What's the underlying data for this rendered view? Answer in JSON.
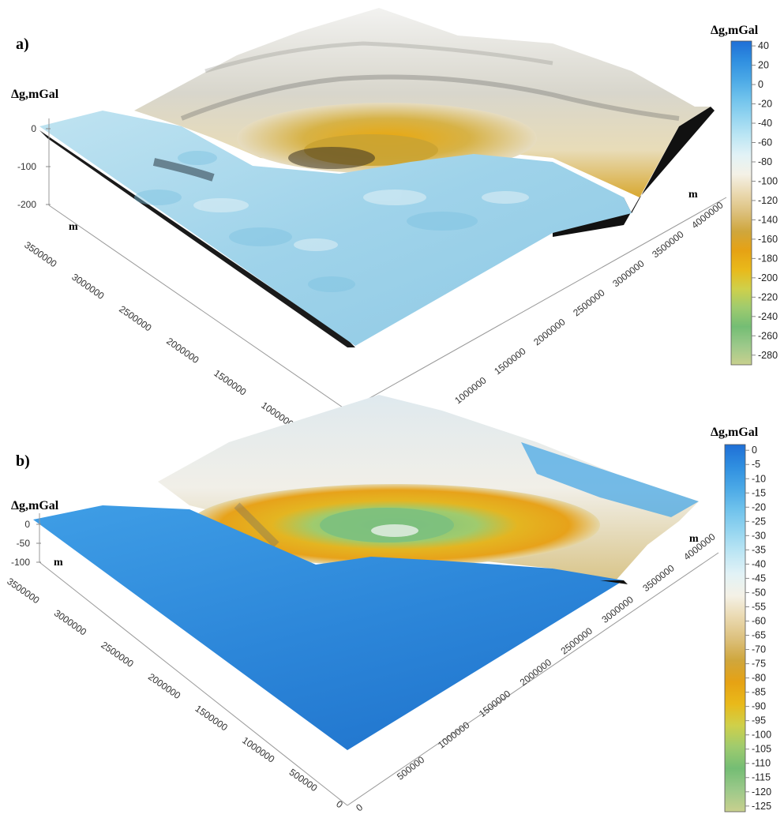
{
  "chart_data": [
    {
      "type": "surface3d",
      "panel": "a)",
      "zlabel": "Δg,mGal",
      "z_ticks": [
        "0",
        "-100",
        "-200"
      ],
      "x_axis_unit": "m",
      "x_ticks": [
        "1000000",
        "1500000",
        "2000000",
        "2500000",
        "3000000",
        "3500000"
      ],
      "y_axis_unit": "m",
      "y_ticks": [
        "1000000",
        "1500000",
        "2000000",
        "2500000",
        "3000000",
        "3500000",
        "4000000"
      ],
      "colorbar": {
        "title": "Δg,mGal",
        "ticks": [
          "40",
          "20",
          "0",
          "-20",
          "-40",
          "-60",
          "-80",
          "-100",
          "-120",
          "-140",
          "-160",
          "-180",
          "-200",
          "-220",
          "-240",
          "-260",
          "-280"
        ],
        "colors": [
          "#1f6fd6",
          "#2f8ee0",
          "#4aa8e6",
          "#6fc2ec",
          "#95d5f0",
          "#bde6f4",
          "#e2f2f6",
          "#f4f1e6",
          "#ead9b0",
          "#dcc07c",
          "#cfa63c",
          "#e6a214",
          "#e9b91a",
          "#cfd04a",
          "#9fcb6e",
          "#74bd74",
          "#9cc98a",
          "#c9d08e"
        ],
        "range": [
          -290,
          45
        ]
      }
    },
    {
      "type": "surface3d",
      "panel": "b)",
      "zlabel": "Δg,mGal",
      "z_ticks": [
        "0",
        "-50",
        "-100"
      ],
      "x_axis_unit": "m",
      "x_ticks": [
        "0",
        "500000",
        "1000000",
        "1500000",
        "2000000",
        "2500000",
        "3000000",
        "3500000"
      ],
      "y_axis_unit": "m",
      "y_ticks": [
        "0",
        "500000",
        "1000000",
        "1500000",
        "2000000",
        "2500000",
        "3000000",
        "3500000",
        "4000000"
      ],
      "colorbar": {
        "title": "Δg,mGal",
        "ticks": [
          "0",
          "-5",
          "-10",
          "-15",
          "-20",
          "-25",
          "-30",
          "-35",
          "-40",
          "-45",
          "-50",
          "-55",
          "-60",
          "-65",
          "-70",
          "-75",
          "-80",
          "-85",
          "-90",
          "-95",
          "-100",
          "-105",
          "-110",
          "-115",
          "-120",
          "-125"
        ],
        "colors": [
          "#1f6fd6",
          "#2f8ee0",
          "#4aa8e6",
          "#6fc2ec",
          "#95d5f0",
          "#bde6f4",
          "#e2f2f6",
          "#f4f1e6",
          "#ead9b0",
          "#dcc07c",
          "#cfa63c",
          "#e6a214",
          "#e9b91a",
          "#cfd04a",
          "#9fcb6e",
          "#74bd74",
          "#9cc98a",
          "#c9d08e"
        ],
        "range": [
          -127,
          2
        ]
      }
    }
  ]
}
